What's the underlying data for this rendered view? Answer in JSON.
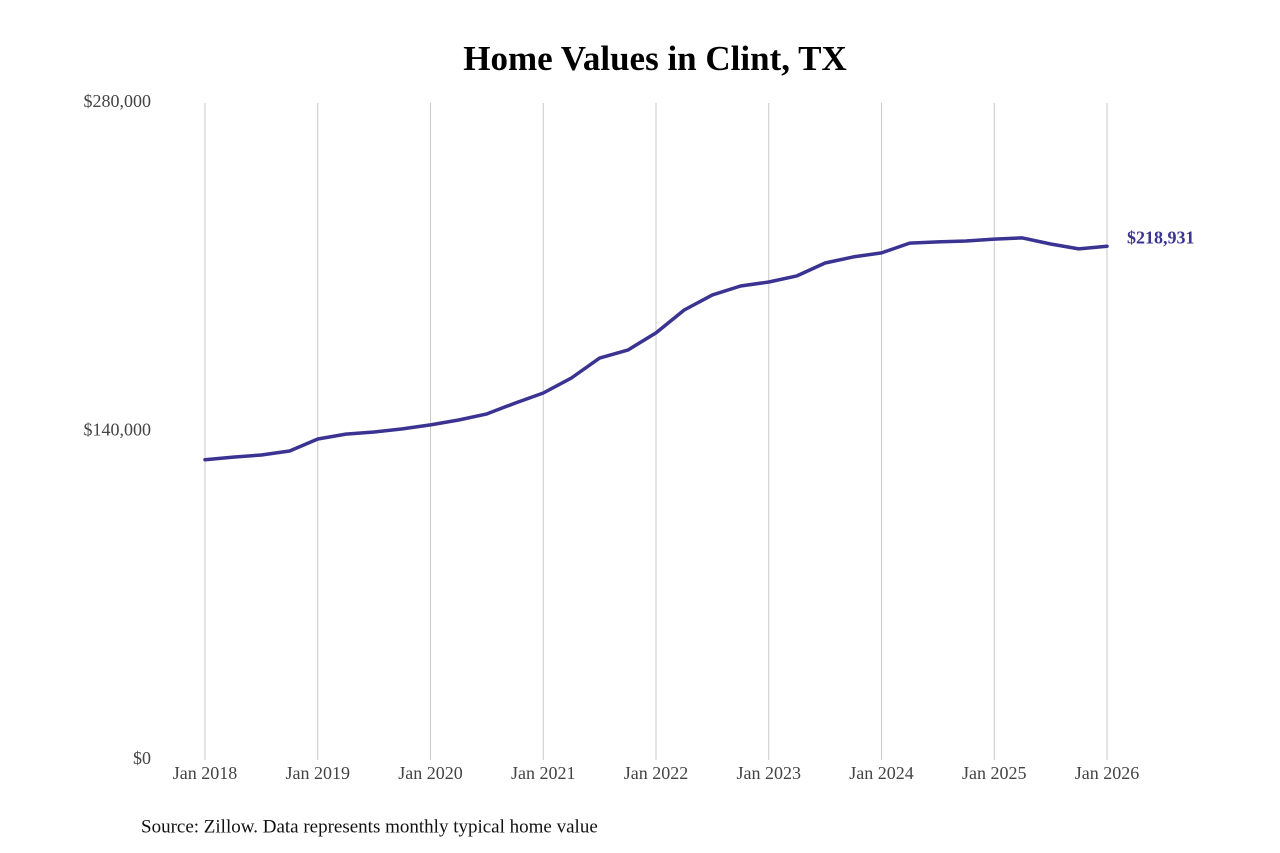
{
  "chart_data": {
    "type": "line",
    "title": "Home Values in Clint, TX",
    "source": "Source: Zillow. Data represents monthly typical home value",
    "x": [
      "2018-01",
      "2018-04",
      "2018-07",
      "2018-10",
      "2019-01",
      "2019-04",
      "2019-07",
      "2019-10",
      "2020-01",
      "2020-04",
      "2020-07",
      "2020-10",
      "2021-01",
      "2021-04",
      "2021-07",
      "2021-10",
      "2022-01",
      "2022-04",
      "2022-07",
      "2022-10",
      "2023-01",
      "2023-04",
      "2023-07",
      "2023-10",
      "2024-01",
      "2024-04",
      "2024-07",
      "2024-10",
      "2025-01",
      "2025-04",
      "2025-07",
      "2025-10",
      "2026-01"
    ],
    "series": [
      {
        "name": "Typical home value",
        "color": "#3b3391",
        "values": [
          128000,
          129100,
          130000,
          131700,
          136800,
          138900,
          139800,
          141100,
          142800,
          144900,
          147500,
          152100,
          156400,
          162800,
          171300,
          174700,
          182000,
          191800,
          198200,
          202000,
          203700,
          206300,
          211800,
          214400,
          216100,
          220300,
          220800,
          221200,
          222000,
          222500,
          219900,
          217800,
          218931
        ],
        "value_labels": [
          null,
          null,
          null,
          null,
          null,
          null,
          null,
          null,
          null,
          null,
          null,
          null,
          null,
          null,
          null,
          null,
          null,
          null,
          null,
          null,
          null,
          null,
          null,
          null,
          null,
          null,
          null,
          null,
          null,
          null,
          null,
          null,
          "$218,931"
        ]
      }
    ],
    "xlim": [
      "2018-01",
      "2026-01"
    ],
    "xticks": [
      {
        "value": "2018-01",
        "label": "Jan 2018"
      },
      {
        "value": "2019-01",
        "label": "Jan 2019"
      },
      {
        "value": "2020-01",
        "label": "Jan 2020"
      },
      {
        "value": "2021-01",
        "label": "Jan 2021"
      },
      {
        "value": "2022-01",
        "label": "Jan 2022"
      },
      {
        "value": "2023-01",
        "label": "Jan 2023"
      },
      {
        "value": "2024-01",
        "label": "Jan 2024"
      },
      {
        "value": "2025-01",
        "label": "Jan 2025"
      },
      {
        "value": "2026-01",
        "label": "Jan 2026"
      }
    ],
    "ylim": [
      0,
      280000
    ],
    "yticks": [
      {
        "value": 0,
        "label": "$0"
      },
      {
        "value": 140000,
        "label": "$140,000"
      },
      {
        "value": 280000,
        "label": "$280,000"
      }
    ],
    "grid": "x"
  }
}
